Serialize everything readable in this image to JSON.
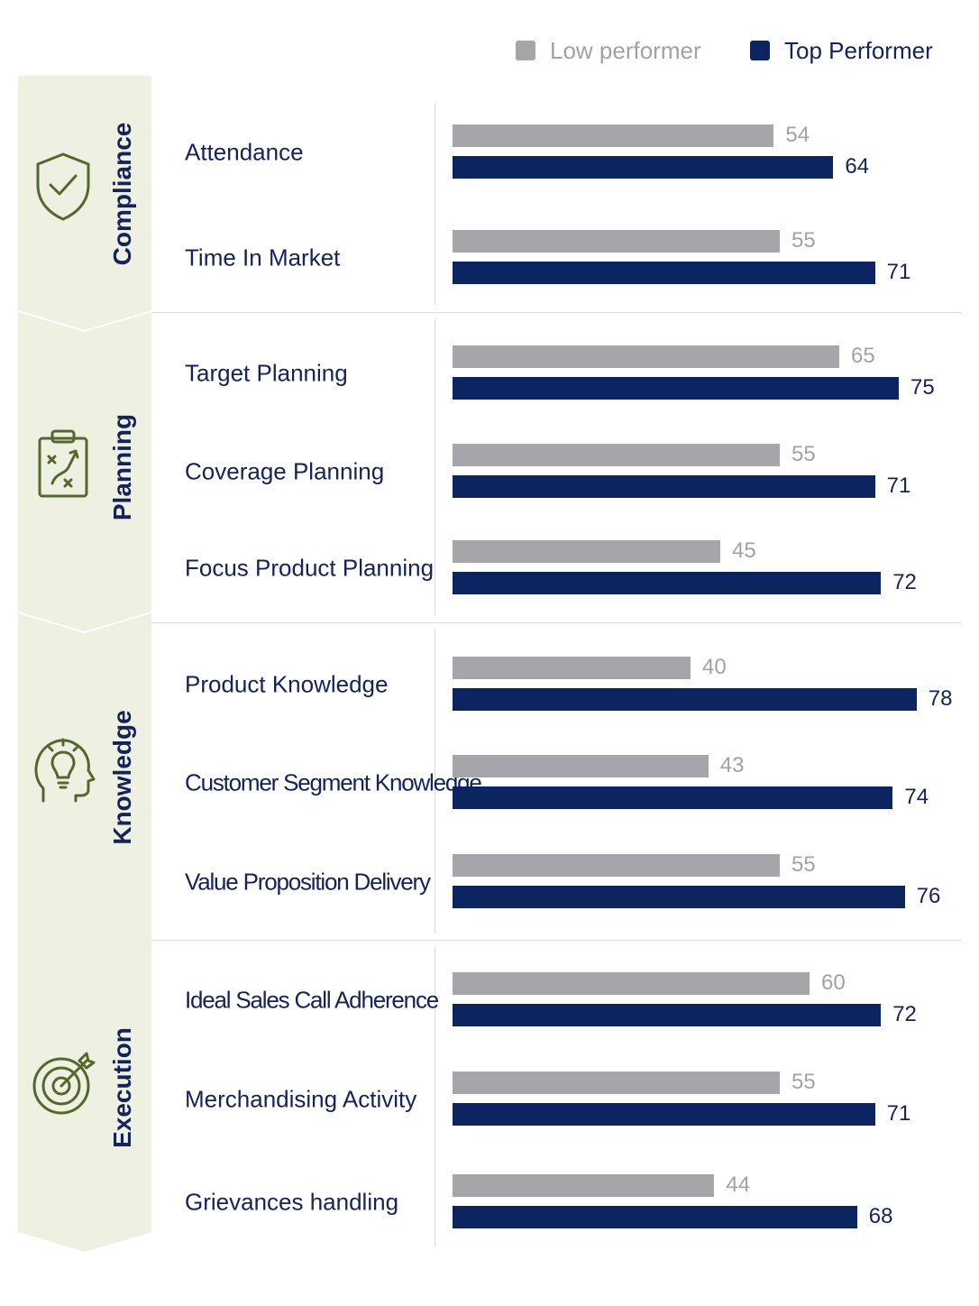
{
  "colors": {
    "low": "#a6a6aa",
    "top": "#0c2460",
    "low_text": "#a2a2a6",
    "top_text": "#14235a",
    "band_fill": "#eef0e2",
    "icon": "#55672c"
  },
  "chart_data": {
    "type": "bar",
    "orientation": "horizontal",
    "legend": {
      "placement": "top-right",
      "entries": [
        {
          "key": "low",
          "label": "Low performer"
        },
        {
          "key": "top",
          "label": "Top Performer"
        }
      ]
    },
    "series": [
      {
        "name": "Low performer",
        "key": "low"
      },
      {
        "name": "Top Performer",
        "key": "top"
      }
    ],
    "xlim": [
      0,
      80
    ],
    "grid": false,
    "groups": [
      {
        "name": "Compliance",
        "icon": "shield-check-icon",
        "items": [
          {
            "label": "Attendance",
            "low": 54,
            "top": 64
          },
          {
            "label": "Time In Market",
            "low": 55,
            "top": 71
          }
        ]
      },
      {
        "name": "Planning",
        "icon": "clipboard-strategy-icon",
        "items": [
          {
            "label": "Target Planning",
            "low": 65,
            "top": 75
          },
          {
            "label": "Coverage Planning",
            "low": 55,
            "top": 71
          },
          {
            "label": "Focus Product Planning",
            "low": 45,
            "top": 72
          }
        ]
      },
      {
        "name": "Knowledge",
        "icon": "head-lightbulb-icon",
        "items": [
          {
            "label": "Product Knowledge",
            "low": 40,
            "top": 78
          },
          {
            "label": "Customer Segment Knowledge",
            "low": 43,
            "top": 74
          },
          {
            "label": "Value Proposition Delivery",
            "low": 55,
            "top": 76
          }
        ]
      },
      {
        "name": "Execution",
        "icon": "target-arrow-icon",
        "items": [
          {
            "label": "Ideal Sales Call Adherence",
            "low": 60,
            "top": 72
          },
          {
            "label": "Merchandising Activity",
            "low": 55,
            "top": 71
          },
          {
            "label": "Grievances handling",
            "low": 44,
            "top": 68
          }
        ]
      }
    ]
  }
}
